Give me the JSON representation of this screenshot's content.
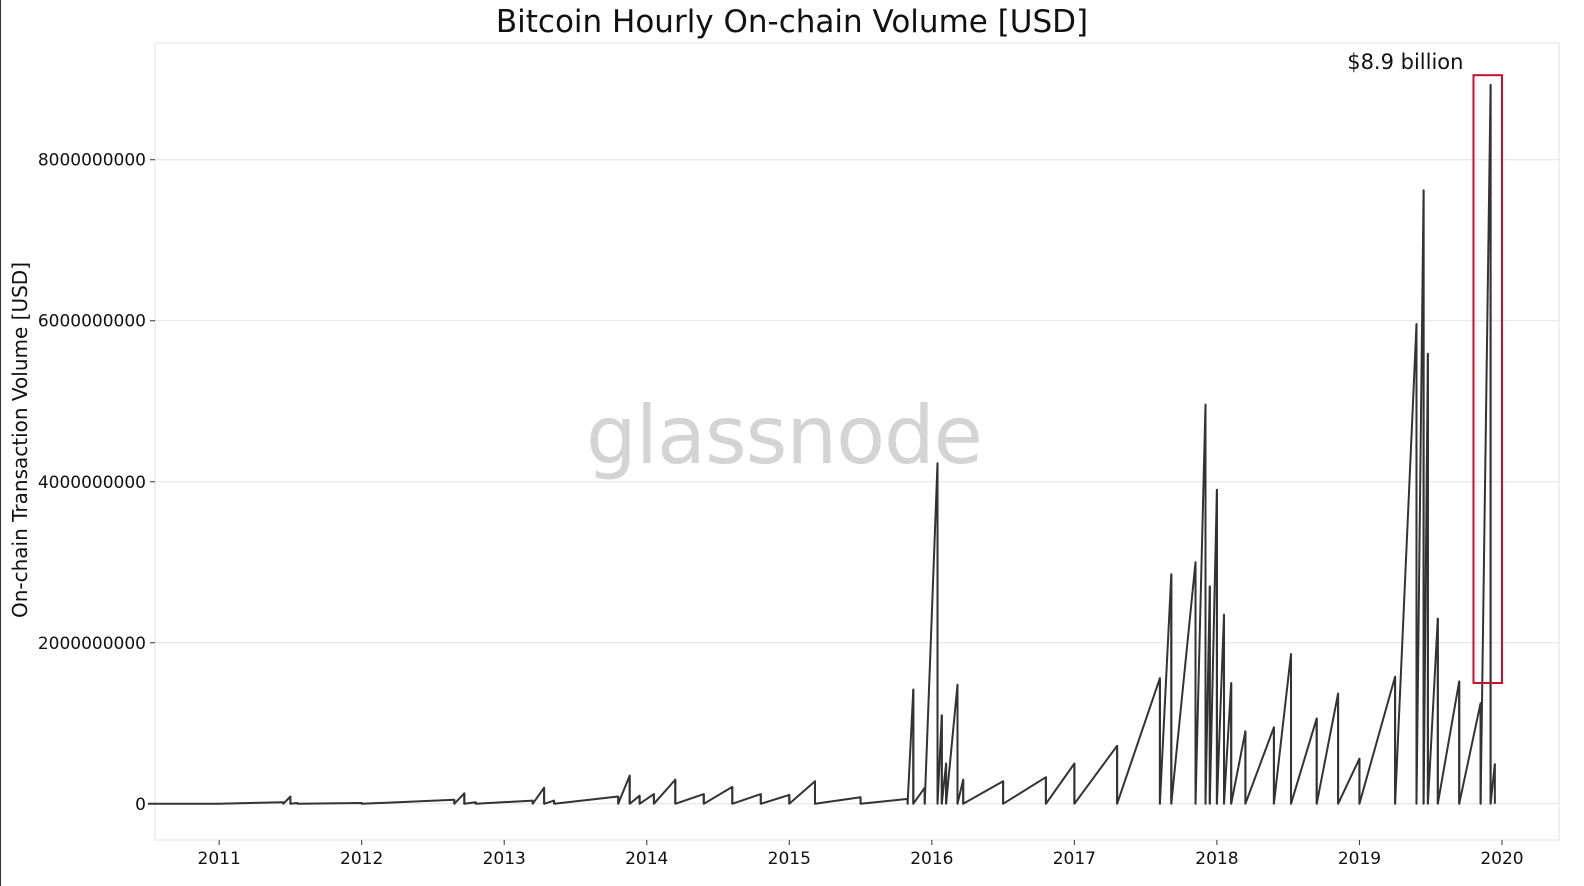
{
  "chart_data": {
    "type": "line",
    "title": "Bitcoin Hourly On-chain Volume [USD]",
    "xlabel": "",
    "ylabel": "On-chain Transaction Volume [USD]",
    "xlim": [
      2010.55,
      2020.4
    ],
    "ylim": [
      -450000000,
      9450000000
    ],
    "grid": true,
    "x_ticks": [
      "2011",
      "2012",
      "2013",
      "2014",
      "2015",
      "2016",
      "2017",
      "2018",
      "2019",
      "2020"
    ],
    "y_ticks": [
      "0",
      "2000000000",
      "4000000000",
      "6000000000",
      "8000000000"
    ],
    "line_color": "#333333",
    "series": [
      {
        "x": [
          2010.5,
          2011.0,
          2011.45,
          2011.5,
          2011.55,
          2012.0,
          2012.65,
          2012.72,
          2012.8,
          2013.2,
          2013.28,
          2013.35,
          2013.8,
          2013.88,
          2013.95,
          2014.05,
          2014.2,
          2014.4,
          2014.6,
          2014.8,
          2015.0,
          2015.18,
          2015.5,
          2015.83,
          2015.87,
          2015.95,
          2016.04,
          2016.07,
          2016.1,
          2016.18,
          2016.22,
          2016.5,
          2016.8,
          2017.0,
          2017.3,
          2017.6,
          2017.68,
          2017.85,
          2017.92,
          2017.95,
          2018.0,
          2018.05,
          2018.1,
          2018.2,
          2018.4,
          2018.52,
          2018.7,
          2018.85,
          2019.0,
          2019.25,
          2019.4,
          2019.45,
          2019.48,
          2019.55,
          2019.7,
          2019.85,
          2019.92,
          2019.95
        ],
        "y": [
          0,
          0,
          20000000,
          90000000,
          10000000,
          10000000,
          50000000,
          130000000,
          20000000,
          40000000,
          200000000,
          40000000,
          90000000,
          350000000,
          100000000,
          120000000,
          300000000,
          120000000,
          210000000,
          120000000,
          110000000,
          280000000,
          80000000,
          60000000,
          1420000000,
          200000000,
          4230000000,
          1100000000,
          500000000,
          1480000000,
          300000000,
          280000000,
          330000000,
          500000000,
          720000000,
          1560000000,
          2850000000,
          3000000000,
          4960000000,
          2700000000,
          3900000000,
          2350000000,
          1500000000,
          900000000,
          950000000,
          1860000000,
          1060000000,
          1370000000,
          560000000,
          1580000000,
          5960000000,
          7620000000,
          5590000000,
          2300000000,
          1520000000,
          1250000000,
          8930000000,
          500000000
        ]
      }
    ],
    "annotations": [
      {
        "text": "$8.9 billion",
        "x_range": [
          2019.8,
          2020.0
        ],
        "y_range": [
          1500000000,
          9050000000
        ],
        "color": "#c8102e"
      }
    ],
    "watermark": "glassnode"
  }
}
